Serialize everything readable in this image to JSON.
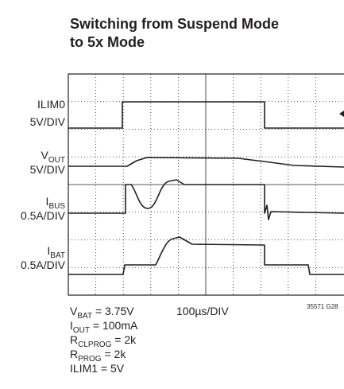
{
  "header": {
    "title": [
      "Switching from Suspend Mode",
      "to 5x Mode"
    ]
  },
  "traces": [
    {
      "name": "ILIM0",
      "sub": "",
      "scale": "5V/DIV"
    },
    {
      "name": "V",
      "sub": "OUT",
      "scale": "5V/DIV"
    },
    {
      "name": "I",
      "sub": "BUS",
      "scale": "0.5A/DIV"
    },
    {
      "name": "I",
      "sub": "BAT",
      "scale": "0.5A/DIV"
    }
  ],
  "timebase": "100µs/DIV",
  "figure_id": "35571 G28",
  "conditions": [
    {
      "name": "V",
      "sub": "BAT",
      "rest": " = 3.75V"
    },
    {
      "name": "I",
      "sub": "OUT",
      "rest": " = 100mA"
    },
    {
      "name": "R",
      "sub": "CLPROG",
      "rest": " = 2k"
    },
    {
      "name": "R",
      "sub": "PROG",
      "rest": " = 2k"
    },
    {
      "name": "ILIM1 = 5V",
      "sub": "",
      "rest": ""
    }
  ]
}
